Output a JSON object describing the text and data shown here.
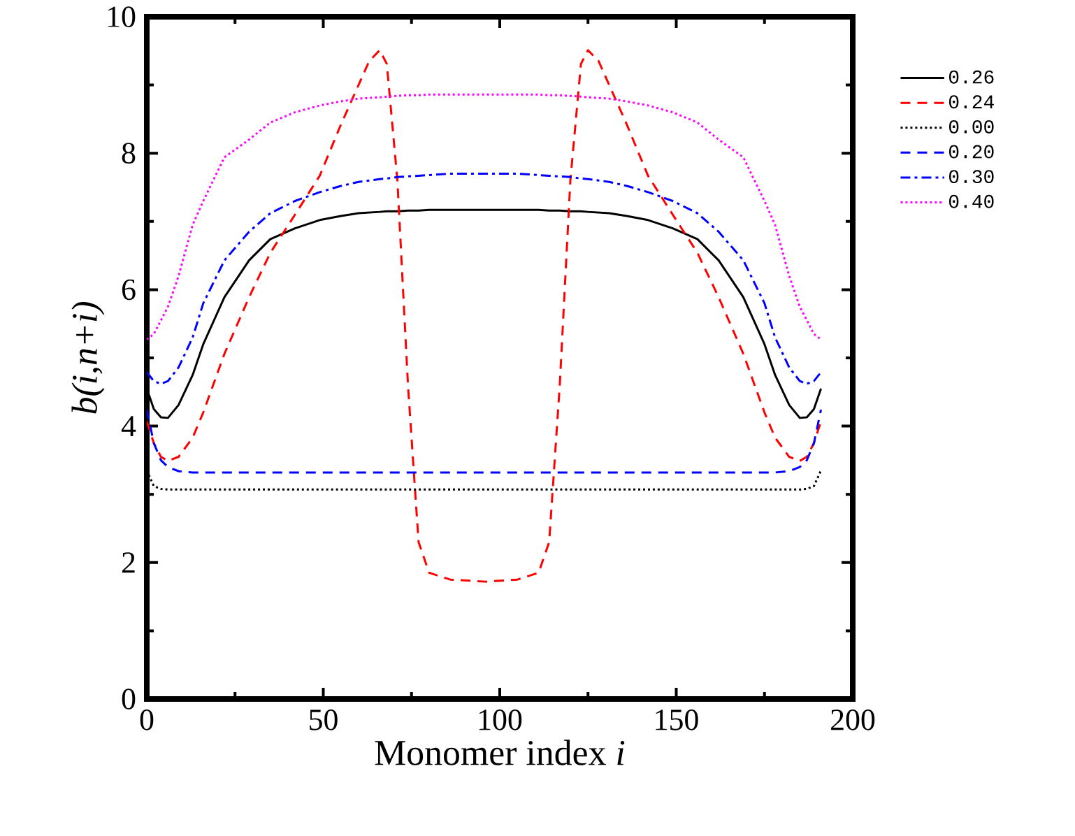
{
  "chart_data": {
    "type": "line",
    "xlabel": "Monomer index  *i*",
    "ylabel": "b(i,n+i)",
    "x": [
      0,
      2,
      4,
      6,
      9,
      13,
      16,
      22,
      29,
      35,
      42,
      49,
      55,
      60,
      63,
      66,
      68,
      71,
      74,
      77,
      80,
      86,
      96,
      105,
      111,
      114,
      117,
      120,
      123,
      125,
      128,
      131,
      136,
      142,
      149,
      156,
      162,
      169,
      175,
      178,
      182,
      185,
      187,
      189,
      191
    ],
    "series": [
      {
        "name": "0.26",
        "color": "#000000",
        "line_style": "solid",
        "values": [
          4.55,
          4.25,
          4.13,
          4.12,
          4.31,
          4.75,
          5.2,
          5.89,
          6.43,
          6.74,
          6.9,
          7.02,
          7.08,
          7.12,
          7.13,
          7.14,
          7.15,
          7.15,
          7.16,
          7.16,
          7.17,
          7.17,
          7.17,
          7.17,
          7.17,
          7.16,
          7.16,
          7.15,
          7.15,
          7.14,
          7.13,
          7.12,
          7.08,
          7.02,
          6.9,
          6.74,
          6.43,
          5.89,
          5.2,
          4.75,
          4.31,
          4.12,
          4.13,
          4.25,
          4.55
        ]
      },
      {
        "name": "0.24",
        "color": "#ff0000",
        "line_style": "dashed",
        "values": [
          4.07,
          3.75,
          3.55,
          3.49,
          3.55,
          3.83,
          4.2,
          5.06,
          5.89,
          6.54,
          7.1,
          7.67,
          8.42,
          9.0,
          9.35,
          9.51,
          9.31,
          7.6,
          4.6,
          2.3,
          1.85,
          1.75,
          1.72,
          1.75,
          1.85,
          2.3,
          4.6,
          7.6,
          9.31,
          9.51,
          9.35,
          9.0,
          8.42,
          7.67,
          7.1,
          6.54,
          5.89,
          5.06,
          4.2,
          3.83,
          3.55,
          3.49,
          3.55,
          3.75,
          4.07
        ]
      },
      {
        "name": "0.00",
        "color": "#000000",
        "line_style": "dotted",
        "values": [
          3.35,
          3.12,
          3.08,
          3.07,
          3.07,
          3.07,
          3.07,
          3.07,
          3.07,
          3.07,
          3.07,
          3.07,
          3.07,
          3.07,
          3.07,
          3.07,
          3.07,
          3.07,
          3.07,
          3.07,
          3.07,
          3.07,
          3.07,
          3.07,
          3.07,
          3.07,
          3.07,
          3.07,
          3.07,
          3.07,
          3.07,
          3.07,
          3.07,
          3.07,
          3.07,
          3.07,
          3.07,
          3.07,
          3.07,
          3.07,
          3.07,
          3.07,
          3.08,
          3.12,
          3.35
        ]
      },
      {
        "name": "0.20",
        "color": "#0000ff",
        "line_style": "dashed",
        "values": [
          4.24,
          3.75,
          3.5,
          3.4,
          3.34,
          3.32,
          3.32,
          3.32,
          3.32,
          3.32,
          3.32,
          3.32,
          3.32,
          3.32,
          3.32,
          3.32,
          3.32,
          3.32,
          3.32,
          3.32,
          3.32,
          3.32,
          3.32,
          3.32,
          3.32,
          3.32,
          3.32,
          3.32,
          3.32,
          3.32,
          3.32,
          3.32,
          3.32,
          3.32,
          3.32,
          3.32,
          3.32,
          3.32,
          3.32,
          3.32,
          3.34,
          3.4,
          3.5,
          3.75,
          4.24
        ]
      },
      {
        "name": "0.30",
        "color": "#0000ff",
        "line_style": "dashdot",
        "values": [
          4.79,
          4.66,
          4.62,
          4.66,
          4.86,
          5.3,
          5.8,
          6.43,
          6.85,
          7.12,
          7.3,
          7.43,
          7.52,
          7.58,
          7.6,
          7.62,
          7.63,
          7.65,
          7.66,
          7.67,
          7.68,
          7.7,
          7.7,
          7.7,
          7.68,
          7.67,
          7.66,
          7.65,
          7.63,
          7.62,
          7.6,
          7.58,
          7.52,
          7.43,
          7.3,
          7.12,
          6.85,
          6.43,
          5.8,
          5.3,
          4.86,
          4.66,
          4.62,
          4.66,
          4.79
        ]
      },
      {
        "name": "0.40",
        "color": "#ff00ff",
        "line_style": "dotted",
        "values": [
          5.27,
          5.35,
          5.55,
          5.75,
          6.2,
          6.95,
          7.3,
          7.94,
          8.2,
          8.45,
          8.6,
          8.7,
          8.76,
          8.8,
          8.81,
          8.82,
          8.83,
          8.84,
          8.85,
          8.85,
          8.86,
          8.86,
          8.86,
          8.86,
          8.86,
          8.85,
          8.85,
          8.84,
          8.83,
          8.82,
          8.81,
          8.8,
          8.76,
          8.7,
          8.6,
          8.45,
          8.2,
          7.94,
          7.3,
          6.95,
          6.2,
          5.75,
          5.55,
          5.35,
          5.27
        ]
      }
    ],
    "xlim": [
      0,
      200
    ],
    "xticks": [
      0,
      50,
      100,
      150,
      200
    ],
    "ylim": [
      0,
      10
    ],
    "yticks": [
      0,
      2,
      4,
      6,
      8,
      10
    ],
    "grid": false,
    "legend": "top right",
    "marker": "none"
  }
}
